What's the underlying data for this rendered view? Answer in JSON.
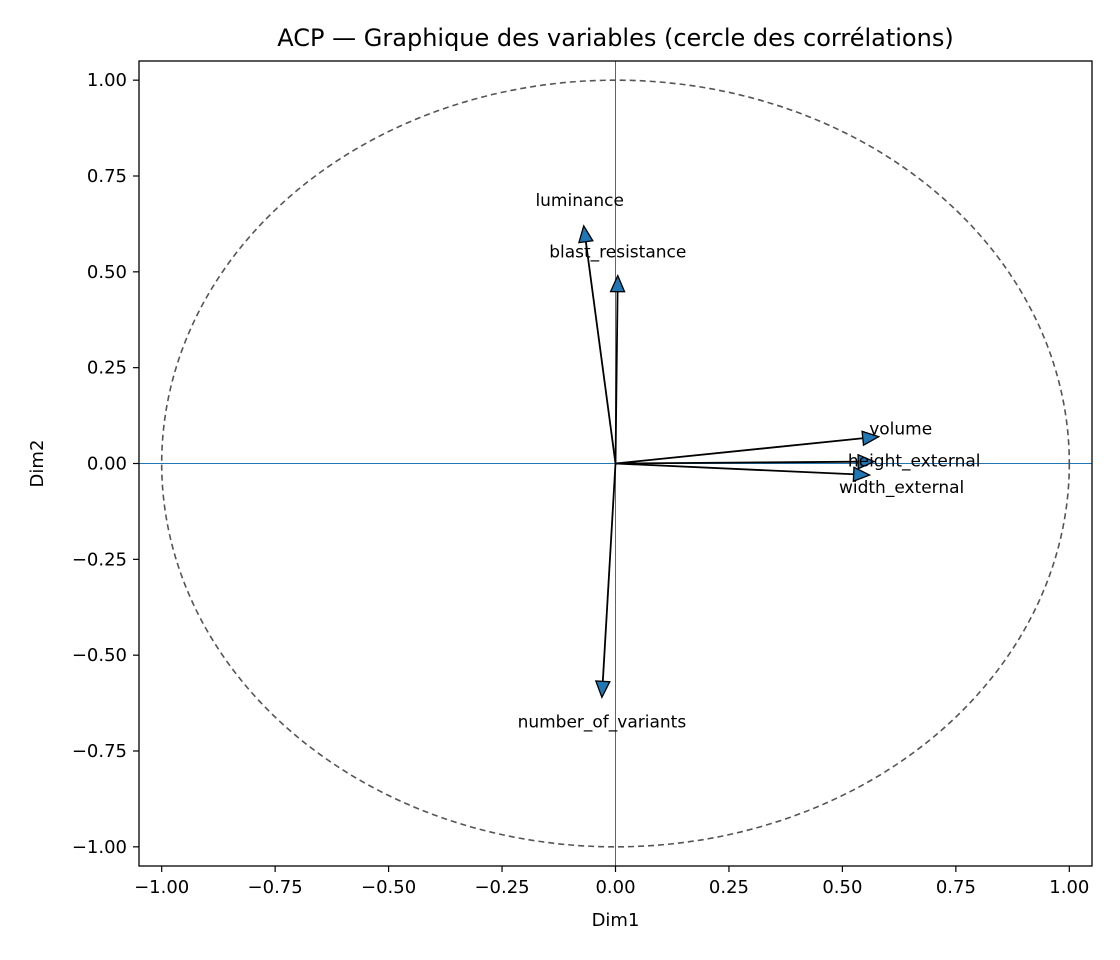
{
  "chart_data": {
    "type": "scatter",
    "title": "ACP — Graphique des variables (cercle des corrélations)",
    "xlabel": "Dim1",
    "ylabel": "Dim2",
    "xlim": [
      -1.05,
      1.05
    ],
    "ylim": [
      -1.05,
      1.05
    ],
    "xticks": [
      -1.0,
      -0.75,
      -0.5,
      -0.25,
      0.0,
      0.25,
      0.5,
      0.75,
      1.0
    ],
    "yticks": [
      -1.0,
      -0.75,
      -0.5,
      -0.25,
      0.0,
      0.25,
      0.5,
      0.75,
      1.0
    ],
    "xtick_labels": [
      "−1.00",
      "−0.75",
      "−0.50",
      "−0.25",
      "0.00",
      "0.25",
      "0.50",
      "0.75",
      "1.00"
    ],
    "ytick_labels": [
      "−1.00",
      "−0.75",
      "−0.50",
      "−0.25",
      "0.00",
      "0.25",
      "0.50",
      "0.75",
      "1.00"
    ],
    "unit_circle": true,
    "reference_lines": {
      "x": 0,
      "y": 0
    },
    "grid": false,
    "colors": {
      "arrow_fill": "#1f77b4",
      "arrow_edge": "#000000",
      "circle": "#555555",
      "ref_lines": "#1f77b4"
    },
    "vectors": [
      {
        "name": "luminance",
        "x": -0.07,
        "y": 0.62
      },
      {
        "name": "blast_resistance",
        "x": 0.005,
        "y": 0.49
      },
      {
        "name": "volume",
        "x": 0.58,
        "y": 0.07
      },
      {
        "name": "height_external",
        "x": 0.57,
        "y": 0.005
      },
      {
        "name": "width_external",
        "x": 0.56,
        "y": -0.03
      },
      {
        "name": "number_of_variants",
        "x": -0.03,
        "y": -0.61
      }
    ]
  }
}
